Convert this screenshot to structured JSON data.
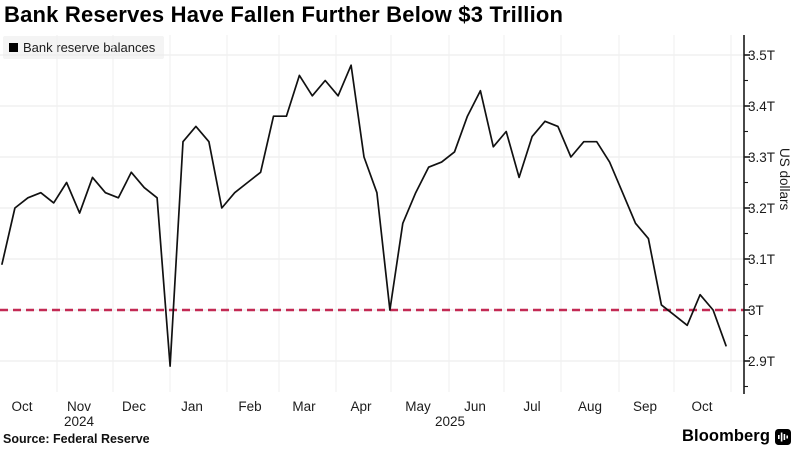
{
  "header": {
    "title": "Bank Reserves Have Fallen Further Below $3 Trillion"
  },
  "legend": {
    "label": "Bank reserve balances",
    "swatch_color": "#000000"
  },
  "y_axis": {
    "title": "US dollars",
    "tick_labels": [
      "3.5T",
      "3.4T",
      "3.3T",
      "3.2T",
      "3.1T",
      "3T",
      "2.9T"
    ]
  },
  "x_axis": {
    "month_labels": [
      "Oct",
      "Nov",
      "Dec",
      "Jan",
      "Feb",
      "Mar",
      "Apr",
      "May",
      "Jun",
      "Jul",
      "Aug",
      "Sep",
      "Oct"
    ],
    "year_labels": [
      "2024",
      "2025"
    ]
  },
  "footer": {
    "source": "Source: Federal Reserve",
    "brand": "Bloomberg",
    "brand_icon": "bloomberg-pulse-icon"
  },
  "colors": {
    "line": "#111111",
    "reference_line": "#c32a54",
    "grid": "#eaeaea",
    "axis": "#1a1a1a",
    "legend_bg": "#f4f4f4"
  },
  "chart_data": {
    "type": "line",
    "title": "Bank Reserves Have Fallen Further Below $3 Trillion",
    "ylabel": "US dollars",
    "unit": "trillion US dollars",
    "ylim": [
      2.85,
      3.55
    ],
    "yticks": [
      3.5,
      3.4,
      3.3,
      3.2,
      3.1,
      3.0,
      2.9
    ],
    "yticks_minor": [
      3.45,
      3.35,
      3.25,
      3.15,
      3.05,
      2.95,
      2.85
    ],
    "x_range_label": "Oct 2024 - Oct 2025",
    "x_months": [
      "Oct",
      "Nov",
      "Dec",
      "Jan",
      "Feb",
      "Mar",
      "Apr",
      "May",
      "Jun",
      "Jul",
      "Aug",
      "Sep",
      "Oct"
    ],
    "x_years": [
      "2024",
      "2025"
    ],
    "interval": "weekly",
    "grid": true,
    "legend_position": "top-left",
    "reference_line": {
      "value": 3.0,
      "style": "dashed",
      "color": "#c32a54",
      "label": "3T"
    },
    "series": [
      {
        "name": "Bank reserve balances",
        "color": "#111111",
        "values": [
          3.09,
          3.2,
          3.22,
          3.23,
          3.21,
          3.25,
          3.19,
          3.26,
          3.23,
          3.22,
          3.27,
          3.24,
          3.22,
          2.89,
          3.33,
          3.36,
          3.33,
          3.2,
          3.23,
          3.25,
          3.27,
          3.38,
          3.38,
          3.46,
          3.42,
          3.45,
          3.42,
          3.48,
          3.3,
          3.23,
          3.0,
          3.17,
          3.23,
          3.28,
          3.29,
          3.31,
          3.38,
          3.43,
          3.32,
          3.35,
          3.26,
          3.34,
          3.37,
          3.36,
          3.3,
          3.33,
          3.33,
          3.29,
          3.23,
          3.17,
          3.14,
          3.01,
          2.99,
          2.97,
          3.03,
          3.0,
          2.93
        ]
      }
    ]
  }
}
